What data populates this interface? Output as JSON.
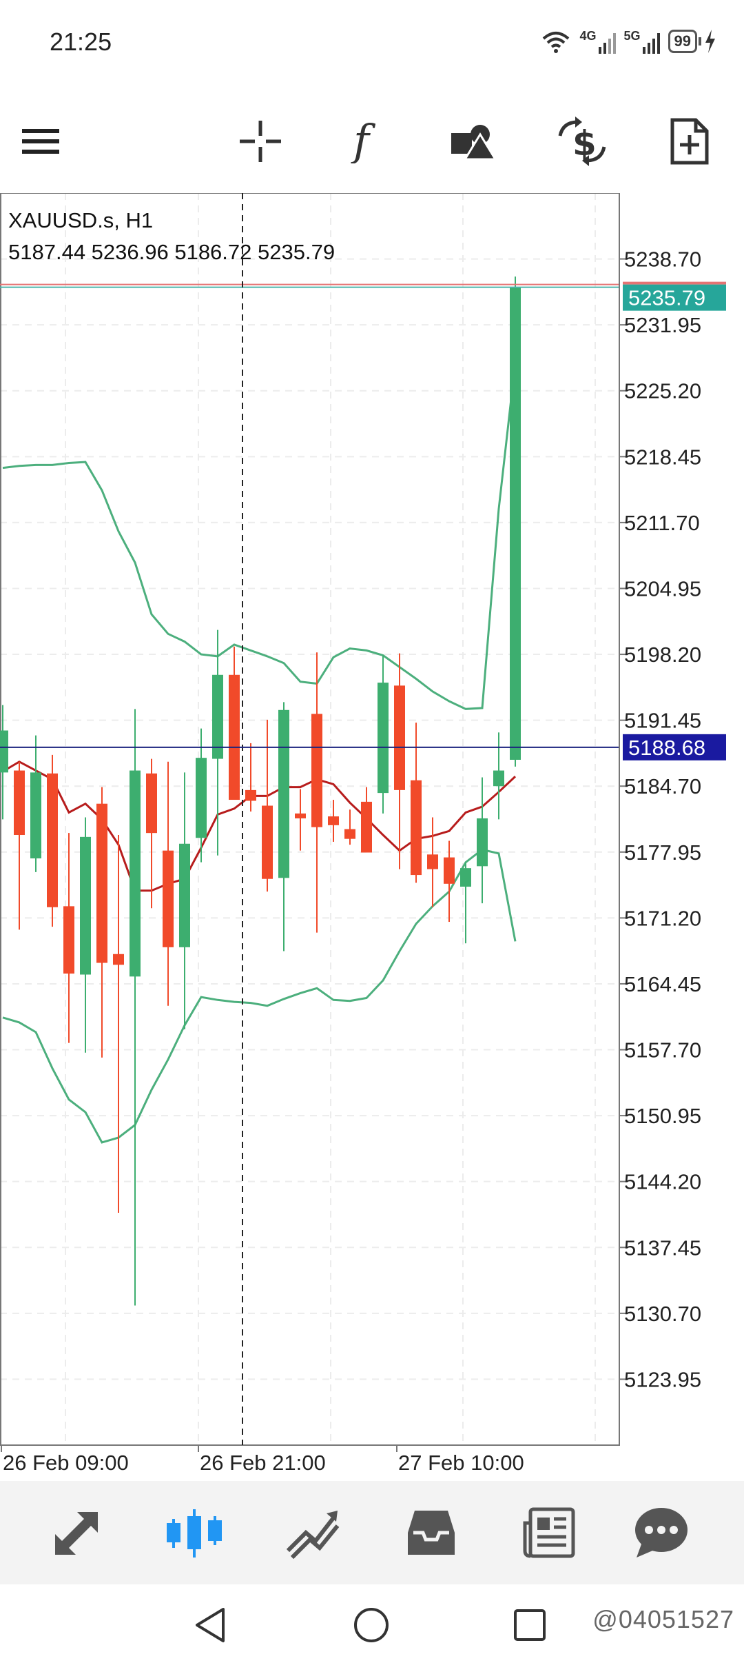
{
  "status": {
    "time": "21:25",
    "network_4g": "4G",
    "network_5g": "5G",
    "battery": "99"
  },
  "toolbar": {
    "icons": [
      "menu-icon",
      "crosshair-icon",
      "indicators-icon",
      "objects-icon",
      "trade-icon",
      "new-order-icon"
    ]
  },
  "chart": {
    "symbol_label": "XAUUSD.s, H1",
    "ohlc_label": "5187.44 5236.96 5186.72 5235.79",
    "current_price": "5235.79",
    "crosshair_price": "5188.68",
    "colors": {
      "bull": "#3dae6f",
      "bear": "#f14a2a",
      "bands": "#4caf7d",
      "ma": "#b71c1c",
      "crosshair_line": "#1a237e",
      "price_tag": "#26a69a",
      "crosshair_tag": "#1a1aa0"
    },
    "time_labels": [
      "26 Feb 09:00",
      "26 Feb 21:00",
      "27 Feb 10:00"
    ]
  },
  "chart_data": {
    "type": "candlestick",
    "ylim": [
      5117.2,
      5245.45
    ],
    "yticks": [
      "5238.70",
      "5231.95",
      "5225.20",
      "5218.45",
      "5211.70",
      "5204.95",
      "5198.20",
      "5191.45",
      "5184.70",
      "5177.95",
      "5171.20",
      "5164.45",
      "5157.70",
      "5150.95",
      "5144.20",
      "5137.45",
      "5130.70",
      "5123.95"
    ],
    "candles": [
      {
        "o": 5186.1,
        "h": 5193.0,
        "l": 5181.3,
        "c": 5190.4
      },
      {
        "o": 5186.3,
        "h": 5187.2,
        "l": 5170.0,
        "c": 5179.7
      },
      {
        "o": 5177.3,
        "h": 5189.9,
        "l": 5175.9,
        "c": 5186.1
      },
      {
        "o": 5186.0,
        "h": 5187.9,
        "l": 5170.3,
        "c": 5172.3
      },
      {
        "o": 5172.4,
        "h": 5179.9,
        "l": 5158.4,
        "c": 5165.5
      },
      {
        "o": 5165.4,
        "h": 5181.5,
        "l": 5157.4,
        "c": 5179.5
      },
      {
        "o": 5182.9,
        "h": 5184.6,
        "l": 5156.9,
        "c": 5166.6
      },
      {
        "o": 5167.5,
        "h": 5179.7,
        "l": 5141.0,
        "c": 5166.4
      },
      {
        "o": 5165.2,
        "h": 5192.6,
        "l": 5131.5,
        "c": 5186.3
      },
      {
        "o": 5186.0,
        "h": 5187.5,
        "l": 5172.2,
        "c": 5179.9
      },
      {
        "o": 5178.1,
        "h": 5187.2,
        "l": 5162.2,
        "c": 5168.2
      },
      {
        "o": 5168.2,
        "h": 5186.1,
        "l": 5159.8,
        "c": 5178.8
      },
      {
        "o": 5179.4,
        "h": 5190.6,
        "l": 5176.9,
        "c": 5187.6
      },
      {
        "o": 5187.5,
        "h": 5200.7,
        "l": 5177.6,
        "c": 5196.1
      },
      {
        "o": 5196.1,
        "h": 5199.0,
        "l": 5183.6,
        "c": 5183.3
      },
      {
        "o": 5184.3,
        "h": 5189.1,
        "l": 5182.1,
        "c": 5183.2
      },
      {
        "o": 5182.7,
        "h": 5191.5,
        "l": 5173.9,
        "c": 5175.2
      },
      {
        "o": 5175.3,
        "h": 5193.3,
        "l": 5167.8,
        "c": 5192.5
      },
      {
        "o": 5181.9,
        "h": 5184.4,
        "l": 5178.1,
        "c": 5181.4
      },
      {
        "o": 5192.1,
        "h": 5198.4,
        "l": 5169.7,
        "c": 5180.5
      },
      {
        "o": 5181.6,
        "h": 5183.3,
        "l": 5179.0,
        "c": 5180.7
      },
      {
        "o": 5180.3,
        "h": 5182.3,
        "l": 5178.7,
        "c": 5179.3
      },
      {
        "o": 5183.1,
        "h": 5184.6,
        "l": 5178.7,
        "c": 5177.9
      },
      {
        "o": 5184.0,
        "h": 5198.1,
        "l": 5181.9,
        "c": 5195.3
      },
      {
        "o": 5195.0,
        "h": 5198.3,
        "l": 5176.2,
        "c": 5184.3
      },
      {
        "o": 5185.3,
        "h": 5191.2,
        "l": 5174.8,
        "c": 5175.6
      },
      {
        "o": 5177.7,
        "h": 5181.5,
        "l": 5172.3,
        "c": 5176.2
      },
      {
        "o": 5177.4,
        "h": 5179.1,
        "l": 5170.8,
        "c": 5174.7
      },
      {
        "o": 5174.4,
        "h": 5176.9,
        "l": 5168.6,
        "c": 5176.3
      },
      {
        "o": 5176.5,
        "h": 5185.6,
        "l": 5172.7,
        "c": 5181.4
      },
      {
        "o": 5184.7,
        "h": 5190.2,
        "l": 5181.3,
        "c": 5186.3
      },
      {
        "o": 5187.4,
        "h": 5236.9,
        "l": 5186.7,
        "c": 5235.8
      }
    ],
    "upper_band": [
      5217.3,
      5217.5,
      5217.6,
      5217.6,
      5217.8,
      5217.9,
      5215.0,
      5210.8,
      5207.6,
      5202.3,
      5200.3,
      5199.5,
      5198.2,
      5198.0,
      5199.2,
      5198.6,
      5198.0,
      5197.3,
      5195.4,
      5195.2,
      5197.9,
      5198.8,
      5198.6,
      5198.1,
      5196.9,
      5195.7,
      5194.4,
      5193.4,
      5192.6,
      5192.7,
      5213.1,
      5228.1
    ],
    "lower_band": [
      5161.0,
      5160.5,
      5159.5,
      5155.8,
      5152.6,
      5151.3,
      5148.2,
      5148.7,
      5150.0,
      5153.6,
      5156.7,
      5160.2,
      5163.1,
      5162.8,
      5162.6,
      5162.5,
      5162.2,
      5162.9,
      5163.5,
      5164.0,
      5162.8,
      5162.7,
      5163.0,
      5164.8,
      5167.8,
      5170.6,
      5172.4,
      5173.9,
      5176.9,
      5178.2,
      5177.8,
      5168.8
    ],
    "moving_average": [
      5186.2,
      5187.2,
      5186.3,
      5185.4,
      5182.0,
      5182.9,
      5181.3,
      5178.7,
      5174.0,
      5174.0,
      5174.7,
      5175.2,
      5178.4,
      5181.8,
      5182.4,
      5183.7,
      5183.7,
      5184.6,
      5184.6,
      5185.4,
      5184.9,
      5183.0,
      5181.4,
      5179.7,
      5178.1,
      5179.3,
      5179.6,
      5180.1,
      5182.0,
      5182.6,
      5184.1,
      5185.7
    ],
    "crosshair": {
      "price": 5188.68,
      "candle_index": 14.5
    }
  },
  "bottom_nav": {
    "items": [
      "quotes-icon",
      "chart-icon",
      "trade-icon",
      "history-icon",
      "news-icon",
      "messages-icon"
    ],
    "active": 1
  },
  "system_nav": {
    "items": [
      "back-icon",
      "home-icon",
      "recents-icon"
    ]
  },
  "watermark": "@04051527"
}
